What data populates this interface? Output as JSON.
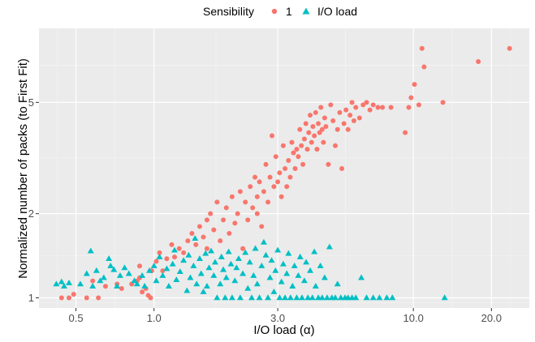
{
  "chart_data": {
    "type": "scatter",
    "xlabel": "I/O load (α)",
    "ylabel": "Normalized number of packs (to First Fit)",
    "x_scale": "log10",
    "y_scale": "log10",
    "xlim": [
      0.36,
      28.0
    ],
    "ylim": [
      0.92,
      9.2
    ],
    "x_ticks": [
      0.5,
      1.0,
      3.0,
      10.0,
      20.0
    ],
    "x_tick_labels": [
      "0.5",
      "1.0",
      "3.0",
      "10.0",
      "20.0"
    ],
    "y_ticks": [
      1,
      2,
      5
    ],
    "y_tick_labels": [
      "1",
      "2",
      "5"
    ],
    "grid": true,
    "legend": {
      "title": "Sensibility",
      "placement": "top",
      "entries": [
        {
          "label": "1",
          "shape": "circle",
          "color": "#F8766D"
        },
        {
          "label": "I/O load",
          "shape": "triangle",
          "color": "#00BFC4"
        }
      ]
    },
    "series": [
      {
        "name": "1",
        "color": "#F8766D",
        "shape": "circle",
        "points": [
          [
            0.44,
            1.0
          ],
          [
            0.47,
            1.0
          ],
          [
            0.49,
            1.03
          ],
          [
            0.55,
            1.0
          ],
          [
            0.58,
            1.15
          ],
          [
            0.61,
            1.0
          ],
          [
            0.65,
            1.1
          ],
          [
            0.72,
            1.12
          ],
          [
            0.75,
            1.08
          ],
          [
            0.82,
            1.12
          ],
          [
            0.86,
            1.15
          ],
          [
            0.88,
            1.18
          ],
          [
            0.9,
            1.05
          ],
          [
            0.93,
            1.08
          ],
          [
            0.95,
            1.02
          ],
          [
            0.97,
            1.0
          ],
          [
            0.88,
            1.3
          ],
          [
            0.98,
            1.25
          ],
          [
            1.02,
            1.35
          ],
          [
            1.05,
            1.45
          ],
          [
            1.08,
            1.25
          ],
          [
            1.12,
            1.38
          ],
          [
            1.17,
            1.55
          ],
          [
            1.2,
            1.4
          ],
          [
            1.25,
            1.5
          ],
          [
            1.3,
            1.45
          ],
          [
            1.35,
            1.6
          ],
          [
            1.4,
            1.7
          ],
          [
            1.45,
            1.55
          ],
          [
            1.5,
            1.8
          ],
          [
            1.55,
            1.65
          ],
          [
            1.6,
            1.9
          ],
          [
            1.6,
            1.5
          ],
          [
            1.65,
            2.0
          ],
          [
            1.7,
            1.75
          ],
          [
            1.75,
            2.2
          ],
          [
            1.8,
            1.6
          ],
          [
            1.85,
            1.9
          ],
          [
            1.9,
            2.1
          ],
          [
            1.95,
            1.7
          ],
          [
            2.0,
            2.3
          ],
          [
            2.05,
            1.85
          ],
          [
            2.1,
            2.0
          ],
          [
            2.15,
            2.4
          ],
          [
            2.2,
            1.5
          ],
          [
            2.25,
            2.2
          ],
          [
            2.3,
            1.9
          ],
          [
            2.35,
            2.5
          ],
          [
            2.4,
            2.1
          ],
          [
            2.45,
            2.7
          ],
          [
            2.5,
            2.3
          ],
          [
            2.5,
            2.0
          ],
          [
            2.55,
            2.6
          ],
          [
            2.6,
            1.8
          ],
          [
            2.65,
            2.4
          ],
          [
            2.7,
            3.0
          ],
          [
            2.75,
            2.2
          ],
          [
            2.8,
            2.7
          ],
          [
            2.85,
            3.8
          ],
          [
            2.9,
            2.5
          ],
          [
            2.95,
            3.2
          ],
          [
            3.0,
            2.6
          ],
          [
            3.05,
            2.8
          ],
          [
            3.1,
            2.3
          ],
          [
            3.15,
            3.5
          ],
          [
            3.2,
            2.9
          ],
          [
            3.25,
            2.5
          ],
          [
            3.3,
            3.1
          ],
          [
            3.35,
            2.7
          ],
          [
            3.4,
            3.6
          ],
          [
            3.45,
            3.3
          ],
          [
            3.5,
            2.9
          ],
          [
            3.55,
            3.4
          ],
          [
            3.6,
            3.2
          ],
          [
            3.65,
            4.0
          ],
          [
            3.7,
            3.5
          ],
          [
            3.75,
            3.0
          ],
          [
            3.8,
            3.7
          ],
          [
            3.85,
            4.2
          ],
          [
            3.9,
            3.4
          ],
          [
            3.95,
            3.9
          ],
          [
            4.0,
            4.5
          ],
          [
            4.05,
            3.6
          ],
          [
            4.1,
            4.1
          ],
          [
            4.15,
            3.8
          ],
          [
            4.2,
            4.6
          ],
          [
            4.25,
            3.4
          ],
          [
            4.3,
            4.2
          ],
          [
            4.35,
            3.9
          ],
          [
            4.4,
            4.8
          ],
          [
            4.45,
            4.0
          ],
          [
            4.5,
            3.6
          ],
          [
            4.55,
            4.4
          ],
          [
            4.6,
            4.1
          ],
          [
            4.7,
            3.0
          ],
          [
            4.8,
            4.9
          ],
          [
            4.9,
            4.3
          ],
          [
            5.0,
            3.5
          ],
          [
            5.1,
            4.0
          ],
          [
            5.2,
            4.6
          ],
          [
            5.3,
            2.9
          ],
          [
            5.4,
            4.2
          ],
          [
            5.5,
            4.7
          ],
          [
            5.6,
            4.0
          ],
          [
            5.7,
            4.5
          ],
          [
            5.8,
            5.0
          ],
          [
            5.9,
            4.3
          ],
          [
            6.0,
            4.8
          ],
          [
            6.2,
            4.4
          ],
          [
            6.4,
            4.9
          ],
          [
            6.6,
            5.0
          ],
          [
            6.8,
            4.7
          ],
          [
            7.0,
            4.9
          ],
          [
            7.3,
            4.8
          ],
          [
            7.6,
            4.8
          ],
          [
            8.2,
            4.8
          ],
          [
            9.3,
            3.9
          ],
          [
            9.6,
            4.8
          ],
          [
            9.8,
            5.2
          ],
          [
            10.1,
            5.8
          ],
          [
            10.5,
            4.9
          ],
          [
            10.8,
            7.8
          ],
          [
            11.0,
            6.7
          ],
          [
            13.0,
            5.0
          ],
          [
            17.8,
            7.0
          ],
          [
            23.5,
            7.8
          ]
        ]
      },
      {
        "name": "I/O load",
        "color": "#00BFC4",
        "shape": "triangle",
        "points": [
          [
            0.42,
            1.12
          ],
          [
            0.44,
            1.14
          ],
          [
            0.45,
            1.1
          ],
          [
            0.47,
            1.13
          ],
          [
            0.52,
            1.12
          ],
          [
            0.55,
            1.22
          ],
          [
            0.57,
            1.47
          ],
          [
            0.58,
            1.1
          ],
          [
            0.6,
            1.25
          ],
          [
            0.62,
            1.15
          ],
          [
            0.64,
            1.18
          ],
          [
            0.67,
            1.38
          ],
          [
            0.68,
            1.3
          ],
          [
            0.7,
            1.26
          ],
          [
            0.72,
            1.1
          ],
          [
            0.74,
            1.2
          ],
          [
            0.77,
            1.28
          ],
          [
            0.8,
            1.22
          ],
          [
            0.84,
            1.15
          ],
          [
            0.86,
            1.12
          ],
          [
            0.9,
            1.2
          ],
          [
            0.92,
            1.1
          ],
          [
            0.96,
            1.25
          ],
          [
            1.0,
            1.3
          ],
          [
            1.02,
            1.15
          ],
          [
            1.05,
            1.4
          ],
          [
            1.08,
            1.2
          ],
          [
            1.12,
            1.27
          ],
          [
            1.14,
            1.1
          ],
          [
            1.18,
            1.32
          ],
          [
            1.2,
            1.48
          ],
          [
            1.22,
            1.16
          ],
          [
            1.26,
            1.24
          ],
          [
            1.3,
            1.36
          ],
          [
            1.34,
            1.06
          ],
          [
            1.36,
            1.42
          ],
          [
            1.38,
            1.18
          ],
          [
            1.42,
            1.3
          ],
          [
            1.44,
            1.63
          ],
          [
            1.46,
            1.12
          ],
          [
            1.5,
            1.38
          ],
          [
            1.52,
            1.22
          ],
          [
            1.55,
            1.05
          ],
          [
            1.58,
            1.44
          ],
          [
            1.6,
            1.1
          ],
          [
            1.63,
            1.28
          ],
          [
            1.66,
            1.47
          ],
          [
            1.7,
            1.2
          ],
          [
            1.72,
            1.34
          ],
          [
            1.75,
            1.0
          ],
          [
            1.8,
            1.12
          ],
          [
            1.82,
            1.4
          ],
          [
            1.85,
            1.26
          ],
          [
            1.88,
            1.0
          ],
          [
            1.9,
            1.18
          ],
          [
            1.94,
            1.46
          ],
          [
            1.98,
            1.32
          ],
          [
            2.0,
            1.0
          ],
          [
            2.05,
            1.15
          ],
          [
            2.08,
            1.28
          ],
          [
            2.12,
            1.38
          ],
          [
            2.15,
            1.0
          ],
          [
            2.2,
            1.22
          ],
          [
            2.25,
            1.45
          ],
          [
            2.3,
            1.08
          ],
          [
            2.34,
            1.34
          ],
          [
            2.38,
            1.0
          ],
          [
            2.42,
            1.2
          ],
          [
            2.46,
            1.5
          ],
          [
            2.5,
            1.12
          ],
          [
            2.55,
            1.0
          ],
          [
            2.6,
            1.3
          ],
          [
            2.65,
            1.58
          ],
          [
            2.7,
            1.42
          ],
          [
            2.75,
            1.0
          ],
          [
            2.8,
            1.18
          ],
          [
            2.84,
            1.36
          ],
          [
            2.9,
            1.05
          ],
          [
            2.94,
            1.25
          ],
          [
            3.0,
            1.48
          ],
          [
            3.05,
            1.0
          ],
          [
            3.1,
            1.14
          ],
          [
            3.15,
            1.32
          ],
          [
            3.2,
            1.0
          ],
          [
            3.25,
            1.22
          ],
          [
            3.3,
            1.44
          ],
          [
            3.36,
            1.0
          ],
          [
            3.42,
            1.1
          ],
          [
            3.48,
            1.3
          ],
          [
            3.55,
            1.0
          ],
          [
            3.6,
            1.2
          ],
          [
            3.66,
            1.4
          ],
          [
            3.72,
            1.0
          ],
          [
            3.8,
            1.15
          ],
          [
            3.86,
            1.34
          ],
          [
            3.92,
            1.0
          ],
          [
            4.0,
            1.25
          ],
          [
            4.08,
            1.0
          ],
          [
            4.15,
            1.46
          ],
          [
            4.2,
            1.1
          ],
          [
            4.3,
            1.0
          ],
          [
            4.38,
            1.3
          ],
          [
            4.45,
            1.0
          ],
          [
            4.55,
            1.18
          ],
          [
            4.65,
            1.0
          ],
          [
            4.75,
            1.52
          ],
          [
            4.85,
            1.0
          ],
          [
            5.0,
            1.0
          ],
          [
            5.1,
            1.12
          ],
          [
            5.25,
            1.0
          ],
          [
            5.45,
            1.0
          ],
          [
            5.6,
            1.0
          ],
          [
            5.8,
            1.0
          ],
          [
            6.0,
            1.0
          ],
          [
            6.3,
            1.18
          ],
          [
            6.6,
            1.0
          ],
          [
            7.0,
            1.0
          ],
          [
            7.4,
            1.0
          ],
          [
            7.9,
            1.0
          ],
          [
            8.3,
            1.0
          ],
          [
            13.2,
            1.0
          ]
        ]
      }
    ]
  }
}
